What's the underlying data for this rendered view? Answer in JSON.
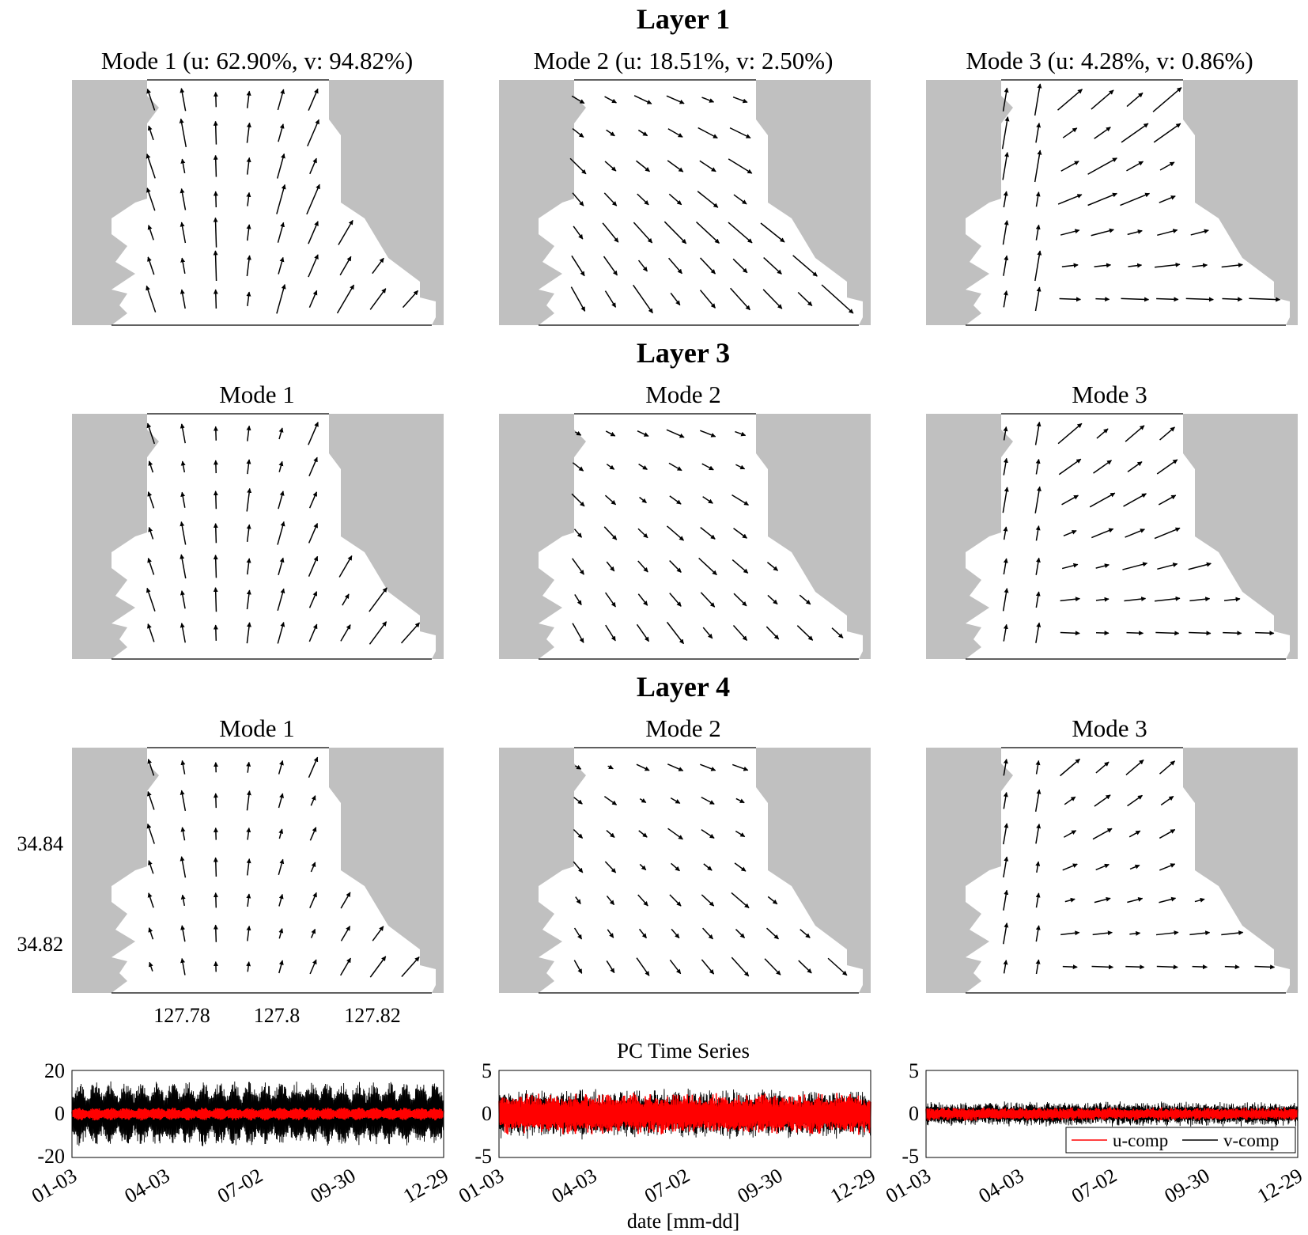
{
  "figure": {
    "layers": [
      {
        "title": "Layer 1",
        "modes": [
          "Mode 1 (u: 62.90%, v: 94.82%)",
          "Mode 2 (u: 18.51%, v: 2.50%)",
          "Mode 3 (u: 4.28%, v: 0.86%)"
        ]
      },
      {
        "title": "Layer 3",
        "modes": [
          "Mode 1",
          "Mode 2",
          "Mode 3"
        ]
      },
      {
        "title": "Layer 4",
        "modes": [
          "Mode 1",
          "Mode 2",
          "Mode 3"
        ]
      }
    ],
    "map_axes": {
      "yticks": [
        "34.84",
        "34.82"
      ],
      "xticks": [
        "127.78",
        "127.8",
        "127.82"
      ]
    },
    "pc": {
      "title": "PC Time Series",
      "xlabel": "date [mm-dd]",
      "xticks": [
        "01-03",
        "04-03",
        "07-02",
        "09-30",
        "12-29"
      ],
      "panels": [
        {
          "yticks": [
            "20",
            "0",
            "-20"
          ],
          "ylim": [
            -20,
            20
          ]
        },
        {
          "yticks": [
            "5",
            "0",
            "-5"
          ],
          "ylim": [
            -5,
            5
          ]
        },
        {
          "yticks": [
            "5",
            "0",
            "-5"
          ],
          "ylim": [
            -5,
            5
          ]
        }
      ],
      "legend": [
        "u-comp",
        "v-comp"
      ]
    }
  },
  "colors": {
    "land": "#c0c0c0",
    "arrow": "#000000",
    "u_comp": "#ff0000",
    "v_comp": "#000000"
  },
  "chart_data": [
    {
      "type": "quiver",
      "description_units": "longitude / latitude",
      "xticks": [
        127.78,
        127.8,
        127.82
      ],
      "yticks": [
        34.82,
        34.84
      ],
      "panels": 9,
      "modes_layer1_explained_variance": [
        {
          "mode": 1,
          "u_percent": 62.9,
          "v_percent": 94.82
        },
        {
          "mode": 2,
          "u_percent": 18.51,
          "v_percent": 2.5
        },
        {
          "mode": 3,
          "u_percent": 4.28,
          "v_percent": 0.86
        }
      ]
    },
    {
      "type": "line",
      "title": "PC Time Series",
      "xlabel": "date [mm-dd]",
      "x_ticks": [
        "01-03",
        "04-03",
        "07-02",
        "09-30",
        "12-29"
      ],
      "series": [
        {
          "name": "u-comp",
          "color": "#ff0000",
          "amplitude_by_mode": [
            3,
            2.5,
            0.8
          ]
        },
        {
          "name": "v-comp",
          "color": "#000000",
          "amplitude_by_mode": [
            15,
            3,
            1.5
          ]
        }
      ],
      "ylim_by_mode": [
        [
          -20,
          20
        ],
        [
          -5,
          5
        ],
        [
          -5,
          5
        ]
      ],
      "legend_position": "bottom-right of panel 3"
    }
  ]
}
